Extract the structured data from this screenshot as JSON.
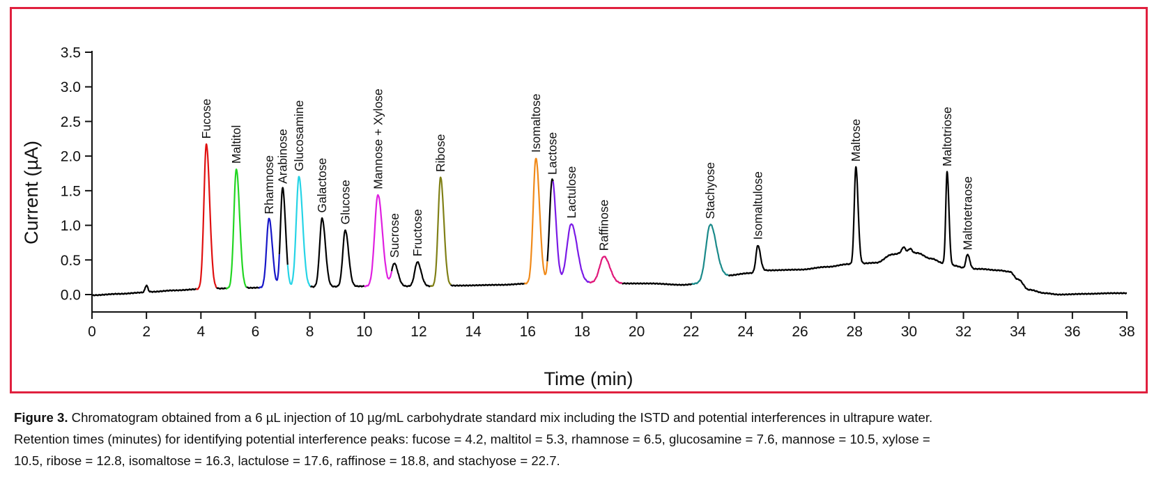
{
  "chart_data": {
    "type": "line",
    "title": "",
    "xlabel": "Time (min)",
    "ylabel": "Current (µA)",
    "xlim": [
      0,
      38
    ],
    "ylim": [
      -0.25,
      3.5
    ],
    "xticks": [
      0,
      2,
      4,
      6,
      8,
      10,
      12,
      14,
      16,
      18,
      20,
      22,
      24,
      26,
      28,
      30,
      32,
      34,
      36,
      38
    ],
    "yticks": [
      "0.0",
      "0.5",
      "1.0",
      "1.5",
      "2.0",
      "2.5",
      "3.0",
      "3.5"
    ],
    "ytick_values": [
      0.0,
      0.5,
      1.0,
      1.5,
      2.0,
      2.5,
      3.0,
      3.5
    ],
    "grid": false,
    "legend": "none",
    "baseline": [
      [
        0,
        -0.01
      ],
      [
        1,
        0.01
      ],
      [
        1.9,
        0.03
      ],
      [
        2.2,
        0.04
      ],
      [
        3,
        0.06
      ],
      [
        4.05,
        0.08
      ],
      [
        5.1,
        0.09
      ],
      [
        6.3,
        0.1
      ],
      [
        8,
        0.11
      ],
      [
        10,
        0.12
      ],
      [
        12.5,
        0.12
      ],
      [
        13.5,
        0.13
      ],
      [
        15,
        0.14
      ],
      [
        16.1,
        0.16
      ],
      [
        17.0,
        0.17
      ],
      [
        18.2,
        0.17
      ],
      [
        19.4,
        0.16
      ],
      [
        20.5,
        0.16
      ],
      [
        21.7,
        0.14
      ],
      [
        22.3,
        0.16
      ],
      [
        23.2,
        0.27
      ],
      [
        24.2,
        0.31
      ],
      [
        24.8,
        0.35
      ],
      [
        26,
        0.36
      ],
      [
        27,
        0.4
      ],
      [
        27.8,
        0.44
      ],
      [
        28.3,
        0.45
      ],
      [
        28.8,
        0.46
      ],
      [
        29.4,
        0.58
      ],
      [
        29.9,
        0.62
      ],
      [
        30.3,
        0.6
      ],
      [
        30.8,
        0.52
      ],
      [
        31.3,
        0.45
      ],
      [
        31.6,
        0.42
      ],
      [
        32.2,
        0.37
      ],
      [
        32.6,
        0.37
      ],
      [
        33.3,
        0.35
      ],
      [
        33.7,
        0.33
      ],
      [
        34.0,
        0.22
      ],
      [
        34.4,
        0.07
      ],
      [
        35.0,
        0.02
      ],
      [
        35.5,
        0.0
      ],
      [
        36.5,
        0.01
      ],
      [
        37.5,
        0.02
      ],
      [
        38,
        0.02
      ]
    ],
    "baseline_features": [
      {
        "rt": 2.0,
        "height": 0.1,
        "width": 0.05
      },
      {
        "rt": 29.8,
        "height": 0.07,
        "width": 0.06
      },
      {
        "rt": 30.05,
        "height": 0.05,
        "width": 0.06
      }
    ],
    "peaks": [
      {
        "label": "Fucose",
        "rt": 4.2,
        "apex": 2.17,
        "width": 0.09,
        "color": "#e01010"
      },
      {
        "label": "Maltitol",
        "rt": 5.3,
        "apex": 1.81,
        "width": 0.09,
        "color": "#22d622"
      },
      {
        "label": "Rhamnose",
        "rt": 6.5,
        "apex": 1.1,
        "width": 0.09,
        "color": "#1717c8"
      },
      {
        "label": "Arabinose",
        "rt": 7.0,
        "apex": 1.54,
        "width": 0.08,
        "color": "#000000"
      },
      {
        "label": "Glucosamine",
        "rt": 7.6,
        "apex": 1.7,
        "width": 0.1,
        "color": "#26d4e6"
      },
      {
        "label": "Galactose",
        "rt": 8.45,
        "apex": 1.1,
        "width": 0.09,
        "color": "#000000"
      },
      {
        "label": "Glucose",
        "rt": 9.3,
        "apex": 0.93,
        "width": 0.09,
        "color": "#000000"
      },
      {
        "label": "Mannose + Xylose",
        "rt": 10.5,
        "apex": 1.44,
        "width": 0.12,
        "color": "#e020e0"
      },
      {
        "label": "Sucrose",
        "rt": 11.1,
        "apex": 0.45,
        "width": 0.1,
        "color": "#000000"
      },
      {
        "label": "Fructose",
        "rt": 11.95,
        "apex": 0.47,
        "width": 0.1,
        "color": "#000000"
      },
      {
        "label": "Ribose",
        "rt": 12.8,
        "apex": 1.69,
        "width": 0.09,
        "color": "#808016"
      },
      {
        "label": "Isomaltose",
        "rt": 16.3,
        "apex": 1.97,
        "width": 0.1,
        "color": "#f08a1a"
      },
      {
        "label": "Lactose",
        "rt": 16.9,
        "apex": 1.67,
        "width": 0.1,
        "color": "#000000"
      },
      {
        "label": "Lactulose",
        "rt": 17.6,
        "apex": 1.02,
        "width": 0.16,
        "color": "#7a1ae6"
      },
      {
        "label": "Raffinose",
        "rt": 18.8,
        "apex": 0.55,
        "width": 0.16,
        "color": "#e0187a"
      },
      {
        "label": "Stachyose",
        "rt": 22.7,
        "apex": 1.01,
        "width": 0.16,
        "color": "#1a8a8a"
      },
      {
        "label": "Isomaltulose",
        "rt": 24.45,
        "apex": 0.71,
        "width": 0.07,
        "color": "#000000"
      },
      {
        "label": "Maltose",
        "rt": 28.05,
        "apex": 1.84,
        "width": 0.06,
        "color": "#000000"
      },
      {
        "label": "Maltotriose",
        "rt": 31.4,
        "apex": 1.77,
        "width": 0.05,
        "color": "#000000"
      },
      {
        "label": "Maltotetraose",
        "rt": 32.15,
        "apex": 0.58,
        "width": 0.06,
        "color": "#000000"
      }
    ]
  },
  "frame": {
    "border_color": "#e0203e"
  },
  "caption": {
    "figure_number": "Figure 3.",
    "line1": " Chromatogram obtained from a 6 µL injection of 10 µg/mL carbohydrate standard mix including the ISTD and potential interferences in ultrapure water.",
    "line2": "Retention times (minutes) for identifying potential interference peaks: fucose = 4.2, maltitol = 5.3, rhamnose = 6.5, glucosamine = 7.6, mannose = 10.5, xylose =",
    "line3": "10.5, ribose = 12.8, isomaltose = 16.3, lactulose = 17.6, raffinose = 18.8, and stachyose = 22.7."
  }
}
